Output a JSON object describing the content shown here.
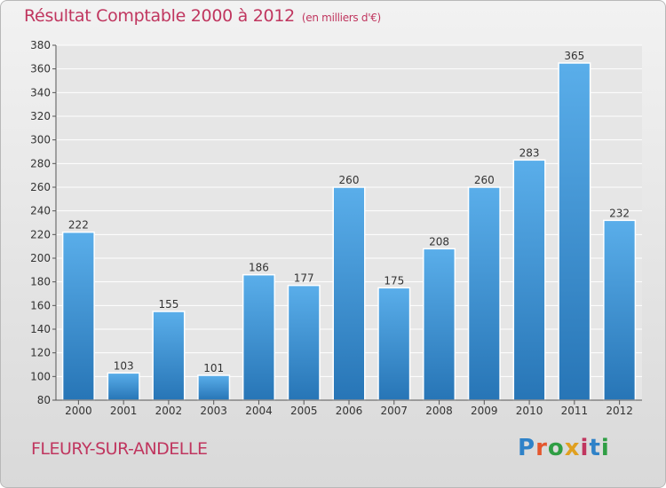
{
  "header": {
    "title": "Résultat Comptable 2000 à 2012",
    "subtitle": "(en milliers d'€)"
  },
  "footer": {
    "place": "FLEURY-SUR-ANDELLE",
    "logo_text": "Proxiti",
    "logo_letters": [
      "P",
      "r",
      "o",
      "x",
      "i",
      "t",
      "i"
    ]
  },
  "colors": {
    "title": "#c0365f",
    "bar_top": "#5aaeea",
    "bar_bottom": "#2775b6",
    "grid": "#ffffff",
    "background": "#e6e6e6"
  },
  "chart_data": {
    "type": "bar",
    "title": "Résultat Comptable 2000 à 2012",
    "subtitle": "(en milliers d'€)",
    "categories": [
      "2000",
      "2001",
      "2002",
      "2003",
      "2004",
      "2005",
      "2006",
      "2007",
      "2008",
      "2009",
      "2010",
      "2011",
      "2012"
    ],
    "values": [
      222,
      103,
      155,
      101,
      186,
      177,
      260,
      175,
      208,
      260,
      283,
      365,
      232
    ],
    "ylim": [
      80,
      380
    ],
    "yticks": [
      80,
      100,
      120,
      140,
      160,
      180,
      200,
      220,
      240,
      260,
      280,
      300,
      320,
      340,
      360,
      380
    ],
    "grid": true,
    "data_labels": true
  }
}
